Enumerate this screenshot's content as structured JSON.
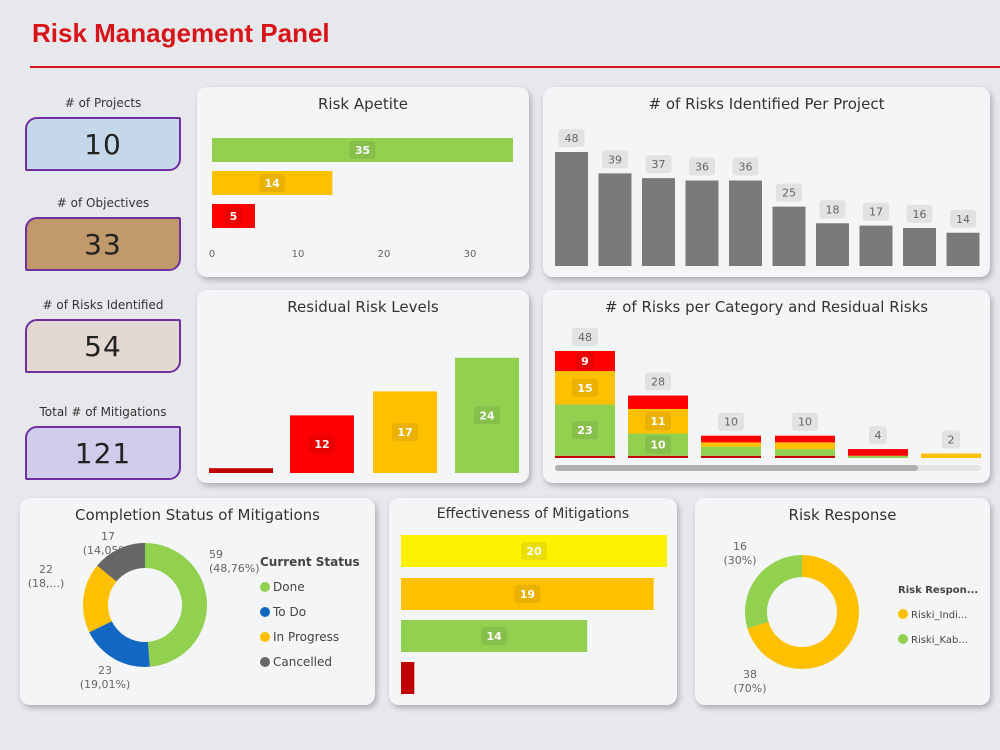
{
  "header": {
    "title": "Risk Management Panel"
  },
  "kpis": [
    {
      "label": "# of Projects",
      "value": "10",
      "color": "#c5d8ea"
    },
    {
      "label": "# of Objectives",
      "value": "33",
      "color": "#c19a6b"
    },
    {
      "label": "# of Risks Identified",
      "value": "54",
      "color": "#e3d9d2"
    },
    {
      "label": "Total # of Mitigations",
      "value": "121",
      "color": "#cfcdeb"
    }
  ],
  "colors": {
    "green": "#92d050",
    "orange": "#ffc000",
    "red": "#ff0000",
    "darkred": "#c00000",
    "yellow": "#fff200",
    "blue": "#1167c2",
    "gray": "#7a7a7a",
    "darkgray": "#666666",
    "accent": "#d7141a"
  },
  "chart_data": [
    {
      "id": "risk_apetite",
      "type": "bar",
      "orientation": "horizontal",
      "title": "Risk Apetite",
      "values": [
        35,
        14,
        5
      ],
      "colors": [
        "#92d050",
        "#ffc000",
        "#ff0000"
      ],
      "xticks": [
        "0",
        "10",
        "20",
        "30"
      ],
      "xlim": [
        0,
        36
      ]
    },
    {
      "id": "risks_per_project",
      "type": "bar",
      "title": "# of Risks Identified Per Project",
      "values": [
        48,
        39,
        37,
        36,
        36,
        25,
        18,
        17,
        16,
        14
      ],
      "color": "#7a7a7a"
    },
    {
      "id": "residual_risk_levels",
      "type": "bar",
      "title": "Residual Risk Levels",
      "values": [
        1,
        12,
        17,
        24
      ],
      "labels": [
        "",
        "12",
        "17",
        "24"
      ],
      "colors": [
        "#c00000",
        "#ff0000",
        "#ffc000",
        "#92d050"
      ]
    },
    {
      "id": "risks_per_category",
      "type": "bar",
      "stacked": true,
      "title": "# of Risks per Category and Residual Risks",
      "totals": [
        48,
        28,
        10,
        10,
        4,
        2
      ],
      "series": [
        {
          "color": "#c00000",
          "values": [
            1,
            1,
            1,
            1,
            0,
            0
          ],
          "labels": [
            "",
            "",
            "",
            "",
            "",
            ""
          ]
        },
        {
          "color": "#92d050",
          "values": [
            23,
            10,
            4,
            3,
            1,
            0
          ],
          "labels": [
            "23",
            "10",
            "",
            "",
            "",
            ""
          ]
        },
        {
          "color": "#ffc000",
          "values": [
            15,
            11,
            2,
            3,
            0,
            2
          ],
          "labels": [
            "15",
            "11",
            "",
            "",
            "",
            ""
          ]
        },
        {
          "color": "#ff0000",
          "values": [
            9,
            6,
            3,
            3,
            3,
            0
          ],
          "labels": [
            "9",
            "",
            "",
            "",
            "",
            ""
          ]
        }
      ]
    },
    {
      "id": "completion_status",
      "type": "pie",
      "donut": true,
      "title": "Completion Status of Mitigations",
      "legend_title": "Current Status",
      "legend": "right",
      "slices": [
        {
          "name": "Done",
          "value": 59,
          "label": "59",
          "pct": "(48,76%)",
          "color": "#92d050"
        },
        {
          "name": "To Do",
          "value": 23,
          "label": "23",
          "pct": "(19,01%)",
          "color": "#1167c2"
        },
        {
          "name": "In Progress",
          "value": 22,
          "label": "22",
          "pct": "(18,...)",
          "color": "#ffc000"
        },
        {
          "name": "Cancelled",
          "value": 17,
          "label": "17",
          "pct": "(14,05%)",
          "color": "#666666"
        }
      ]
    },
    {
      "id": "effectiveness",
      "type": "bar",
      "orientation": "horizontal",
      "title": "Effectiveness of Mitigations",
      "values": [
        20,
        19,
        14,
        1
      ],
      "labels": [
        "20",
        "19",
        "14",
        ""
      ],
      "colors": [
        "#fff200",
        "#ffc000",
        "#92d050",
        "#c00000"
      ]
    },
    {
      "id": "risk_response",
      "type": "pie",
      "donut": true,
      "title": "Risk Response",
      "legend_title": "Risk Respon...",
      "legend": "right",
      "slices": [
        {
          "name": "Riski_Indi...",
          "value": 38,
          "label": "38",
          "pct": "(70%)",
          "color": "#ffc000"
        },
        {
          "name": "Riski_Kab...",
          "value": 16,
          "label": "16",
          "pct": "(30%)",
          "color": "#92d050"
        }
      ]
    }
  ]
}
